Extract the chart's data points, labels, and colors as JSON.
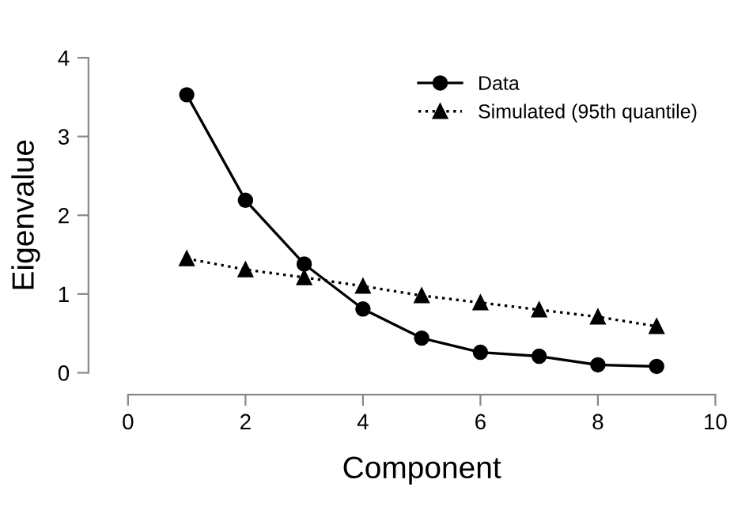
{
  "chart_data": {
    "type": "line",
    "xlabel": "Component",
    "ylabel": "Eigenvalue",
    "x": [
      1,
      2,
      3,
      4,
      5,
      6,
      7,
      8,
      9
    ],
    "series": [
      {
        "name": "Data",
        "color": "#000000",
        "marker": "circle",
        "line_style": "solid",
        "values": [
          3.53,
          2.19,
          1.38,
          0.81,
          0.44,
          0.26,
          0.21,
          0.1,
          0.08
        ]
      },
      {
        "name": "Simulated (95th quantile)",
        "color": "#000000",
        "marker": "triangle",
        "line_style": "dotted",
        "values": [
          1.45,
          1.31,
          1.21,
          1.1,
          0.98,
          0.89,
          0.8,
          0.71,
          0.59
        ]
      }
    ],
    "xlim": [
      0,
      10
    ],
    "ylim": [
      0,
      4
    ],
    "xticks": [
      0,
      2,
      4,
      6,
      8,
      10
    ],
    "yticks": [
      0,
      1,
      2,
      3,
      4
    ],
    "grid": false,
    "legend": "top right"
  }
}
